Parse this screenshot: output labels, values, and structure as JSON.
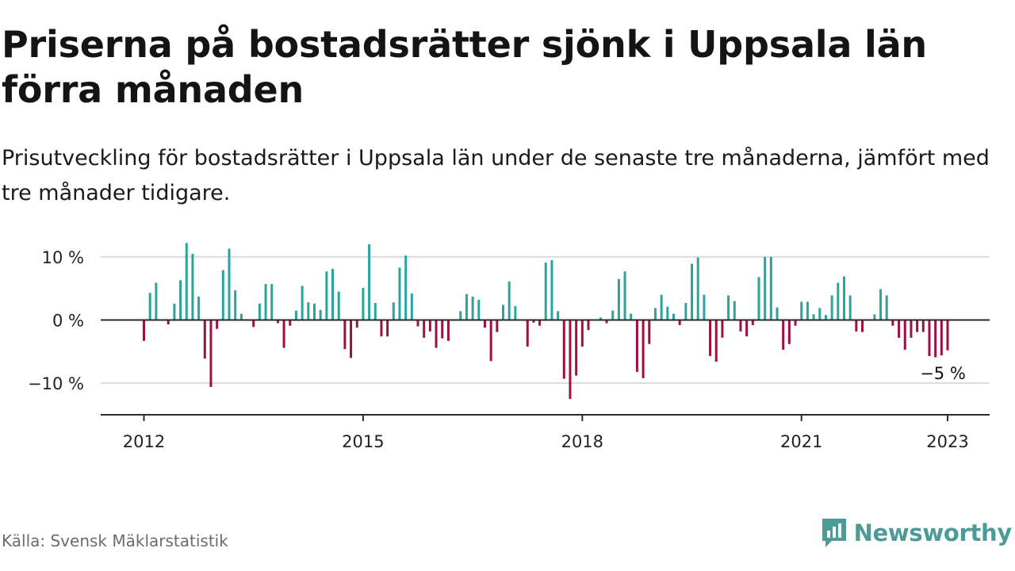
{
  "title": "Priserna på bostadsrätter sjönk i Uppsala län förra månaden",
  "subtitle": "Prisutveckling för bostadsrätter i Uppsala län under de senaste tre månaderna, jämfört med tre månader tidigare.",
  "source": "Källa: Svensk Mäklarstatistik",
  "brand": {
    "name": "Newsworthy",
    "color": "#4b9b97"
  },
  "chart_data": {
    "type": "bar",
    "ylim": [
      -15,
      13
    ],
    "y_ticks": [
      {
        "value": 10,
        "label": "10 %"
      },
      {
        "value": 0,
        "label": "0 %"
      },
      {
        "value": -10,
        "label": "−10 %"
      }
    ],
    "x_ticks": [
      {
        "value": 2012,
        "label": "2012"
      },
      {
        "value": 2015,
        "label": "2015"
      },
      {
        "value": 2018,
        "label": "2018"
      },
      {
        "value": 2021,
        "label": "2021"
      },
      {
        "value": 2023,
        "label": "2023"
      }
    ],
    "x_range": [
      2011.4,
      2023.6
    ],
    "start": "2012-01",
    "grid": true,
    "colors": {
      "positive": "#2aa59e",
      "negative": "#a0103f"
    },
    "annotation": {
      "text": "−5 %",
      "target": "2023-01"
    },
    "values": [
      -3.3,
      4.3,
      5.9,
      0,
      -0.7,
      2.6,
      6.3,
      12.2,
      10.5,
      3.7,
      -6.1,
      -10.6,
      -1.4,
      7.9,
      11.3,
      4.7,
      1.0,
      0,
      -1.1,
      2.6,
      5.7,
      5.7,
      -0.5,
      -4.4,
      -0.9,
      1.5,
      5.4,
      2.8,
      2.6,
      1.6,
      7.7,
      8.1,
      4.5,
      -4.6,
      -6.0,
      -1.2,
      5.1,
      12.0,
      2.7,
      -2.6,
      -2.6,
      2.8,
      8.3,
      10.2,
      4.2,
      -1.0,
      -2.8,
      -1.8,
      -4.4,
      -2.9,
      -3.3,
      0,
      1.4,
      4.1,
      3.7,
      3.2,
      -1.2,
      -6.5,
      -1.9,
      2.4,
      6.1,
      2.2,
      0,
      -4.2,
      -0.4,
      -0.9,
      9.1,
      9.5,
      1.4,
      -9.3,
      -12.5,
      -8.8,
      -4.2,
      -1.6,
      0,
      0.4,
      -0.5,
      1.5,
      6.5,
      7.7,
      1.0,
      -8.2,
      -9.2,
      -3.8,
      1.9,
      4.0,
      2.1,
      1.0,
      -0.8,
      2.7,
      8.9,
      9.9,
      4.0,
      -5.7,
      -6.6,
      -2.8,
      3.9,
      3.0,
      -1.8,
      -2.6,
      -0.8,
      6.8,
      10.0,
      10.0,
      2.0,
      -4.7,
      -3.8,
      -0.9,
      2.9,
      2.9,
      0.9,
      1.9,
      0.8,
      3.9,
      5.9,
      6.9,
      3.9,
      -1.8,
      -1.9,
      0,
      0.9,
      4.9,
      3.9,
      -0.9,
      -2.8,
      -4.7,
      -2.8,
      -1.9,
      -1.9,
      -5.7,
      -5.9,
      -5.6,
      -4.8
    ]
  }
}
